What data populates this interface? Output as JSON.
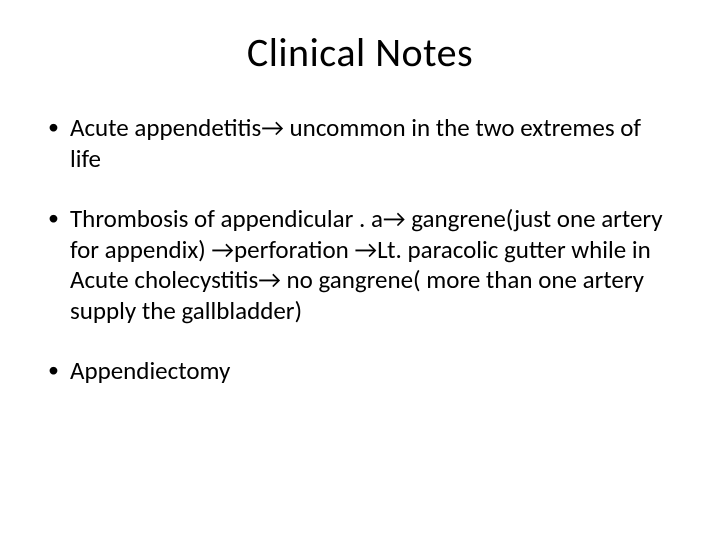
{
  "slide": {
    "title": "Clinical Notes",
    "title_fontsize": 40,
    "body_fontsize": 25,
    "text_color": "#000000",
    "background_color": "#ffffff",
    "bullet_glyph": "•",
    "arrow_glyph": "→",
    "bullets": [
      "Acute appendetitis→    uncommon in the two extremes of life",
      "Thrombosis of appendicular . a→    gangrene(just one artery for appendix) →perforation →Lt. paracolic gutter while in Acute cholecystitis→    no gangrene( more than one artery supply the gallbladder)",
      "Appendiectomy"
    ]
  }
}
